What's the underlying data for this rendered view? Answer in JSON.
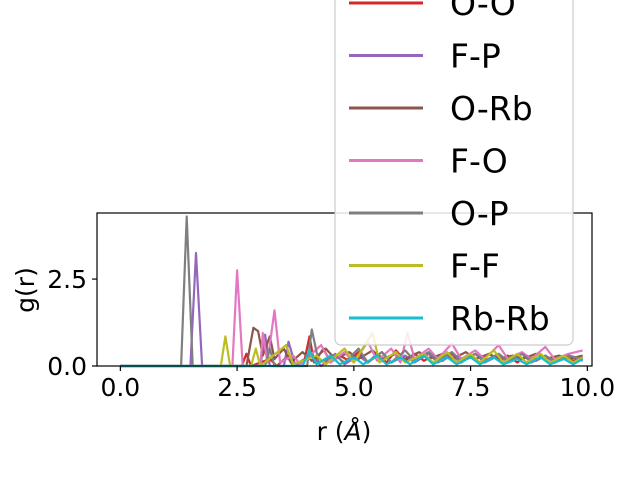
{
  "chart_data": {
    "type": "line",
    "xlabel_prefix": "r (",
    "xlabel_unit": "Å",
    "xlabel_suffix": ")",
    "ylabel": "g(r)",
    "xlim": [
      -0.5,
      10.1
    ],
    "ylim": [
      0,
      4.4
    ],
    "x_ticks": [
      0.0,
      2.5,
      5.0,
      7.5,
      10.0
    ],
    "x_tick_labels": [
      "0.0",
      "2.5",
      "5.0",
      "7.5",
      "10.0"
    ],
    "y_ticks": [
      0.0,
      2.5
    ],
    "y_tick_labels": [
      "0.0",
      "2.5"
    ],
    "grid": false,
    "legend_position": "upper-right (extends above plot)",
    "series": [
      {
        "name": "O-O",
        "color": "#d62728",
        "points": [
          [
            0,
            0
          ],
          [
            2.6,
            0
          ],
          [
            2.7,
            0.35
          ],
          [
            2.8,
            0
          ],
          [
            3.2,
            0.2
          ],
          [
            3.35,
            0
          ],
          [
            3.6,
            0.3
          ],
          [
            3.7,
            0
          ],
          [
            3.95,
            0.2
          ],
          [
            4.05,
            0.85
          ],
          [
            4.15,
            0.1
          ],
          [
            4.35,
            0.5
          ],
          [
            4.5,
            0.1
          ],
          [
            4.7,
            0.3
          ],
          [
            4.9,
            0.15
          ],
          [
            5.1,
            0.4
          ],
          [
            5.3,
            0.1
          ],
          [
            5.5,
            0.35
          ],
          [
            5.7,
            0.1
          ],
          [
            5.9,
            0.45
          ],
          [
            6.1,
            0.15
          ],
          [
            6.3,
            0.35
          ],
          [
            6.5,
            0.15
          ],
          [
            6.7,
            0.3
          ],
          [
            6.9,
            0.15
          ],
          [
            7.1,
            0.35
          ],
          [
            7.3,
            0.1
          ],
          [
            7.5,
            0.3
          ],
          [
            7.7,
            0.1
          ],
          [
            7.9,
            0.35
          ],
          [
            8.1,
            0.15
          ],
          [
            8.3,
            0.3
          ],
          [
            8.5,
            0.1
          ],
          [
            8.7,
            0.3
          ],
          [
            8.9,
            0.15
          ],
          [
            9.1,
            0.3
          ],
          [
            9.3,
            0.1
          ],
          [
            9.5,
            0.3
          ],
          [
            9.7,
            0.15
          ],
          [
            9.9,
            0.25
          ]
        ]
      },
      {
        "name": "F-P",
        "color": "#9467bd",
        "points": [
          [
            0,
            0
          ],
          [
            1.5,
            0
          ],
          [
            1.62,
            3.25
          ],
          [
            1.75,
            0
          ],
          [
            3.0,
            0
          ],
          [
            3.1,
            0.9
          ],
          [
            3.2,
            0
          ],
          [
            3.5,
            0
          ],
          [
            3.6,
            0.7
          ],
          [
            3.75,
            0
          ],
          [
            4.1,
            0.3
          ],
          [
            4.3,
            0
          ],
          [
            4.6,
            0.35
          ],
          [
            4.8,
            0.05
          ],
          [
            5.1,
            0.3
          ],
          [
            5.3,
            0.1
          ],
          [
            5.6,
            0.4
          ],
          [
            5.8,
            0.1
          ],
          [
            6.1,
            0.3
          ],
          [
            6.3,
            0.1
          ],
          [
            6.6,
            0.35
          ],
          [
            6.8,
            0.1
          ],
          [
            7.1,
            0.3
          ],
          [
            7.3,
            0.1
          ],
          [
            7.6,
            0.35
          ],
          [
            7.8,
            0.1
          ],
          [
            8.1,
            0.3
          ],
          [
            8.3,
            0.1
          ],
          [
            8.6,
            0.35
          ],
          [
            8.8,
            0.1
          ],
          [
            9.1,
            0.3
          ],
          [
            9.3,
            0.1
          ],
          [
            9.6,
            0.3
          ],
          [
            9.9,
            0.15
          ]
        ]
      },
      {
        "name": "O-Rb",
        "color": "#8c564b",
        "points": [
          [
            0,
            0
          ],
          [
            2.7,
            0
          ],
          [
            2.85,
            1.1
          ],
          [
            2.95,
            1.0
          ],
          [
            3.05,
            0.3
          ],
          [
            3.2,
            0.85
          ],
          [
            3.3,
            0.2
          ],
          [
            3.5,
            0.5
          ],
          [
            3.65,
            0.1
          ],
          [
            3.9,
            0.4
          ],
          [
            4.1,
            0.15
          ],
          [
            4.4,
            0.5
          ],
          [
            4.6,
            0.2
          ],
          [
            4.9,
            0.4
          ],
          [
            5.1,
            0.2
          ],
          [
            5.4,
            0.45
          ],
          [
            5.6,
            0.2
          ],
          [
            5.9,
            0.35
          ],
          [
            6.1,
            0.2
          ],
          [
            6.4,
            0.4
          ],
          [
            6.6,
            0.2
          ],
          [
            6.9,
            0.35
          ],
          [
            7.1,
            0.2
          ],
          [
            7.4,
            0.4
          ],
          [
            7.6,
            0.2
          ],
          [
            7.9,
            0.35
          ],
          [
            8.1,
            0.2
          ],
          [
            8.4,
            0.3
          ],
          [
            8.6,
            0.2
          ],
          [
            8.9,
            0.35
          ],
          [
            9.1,
            0.2
          ],
          [
            9.4,
            0.3
          ],
          [
            9.6,
            0.2
          ],
          [
            9.9,
            0.3
          ]
        ]
      },
      {
        "name": "F-O",
        "color": "#e377c2",
        "points": [
          [
            0,
            0
          ],
          [
            2.4,
            0
          ],
          [
            2.5,
            2.75
          ],
          [
            2.62,
            0
          ],
          [
            3.0,
            0
          ],
          [
            3.05,
            0.95
          ],
          [
            3.15,
            0.1
          ],
          [
            3.3,
            1.6
          ],
          [
            3.42,
            0.1
          ],
          [
            3.7,
            0.3
          ],
          [
            3.85,
            0.05
          ],
          [
            4.3,
            0.6
          ],
          [
            4.5,
            0.1
          ],
          [
            4.8,
            0.4
          ],
          [
            5.0,
            0.1
          ],
          [
            5.3,
            0.7
          ],
          [
            5.5,
            0.15
          ],
          [
            5.8,
            0.5
          ],
          [
            6.0,
            0.1
          ],
          [
            6.15,
            0.95
          ],
          [
            6.3,
            0.2
          ],
          [
            6.6,
            0.5
          ],
          [
            6.8,
            0.2
          ],
          [
            7.1,
            0.65
          ],
          [
            7.3,
            0.2
          ],
          [
            7.6,
            0.45
          ],
          [
            7.8,
            0.2
          ],
          [
            8.1,
            0.6
          ],
          [
            8.3,
            0.2
          ],
          [
            8.6,
            0.4
          ],
          [
            8.8,
            0.2
          ],
          [
            9.1,
            0.55
          ],
          [
            9.3,
            0.2
          ],
          [
            9.6,
            0.35
          ],
          [
            9.9,
            0.45
          ]
        ]
      },
      {
        "name": "O-P",
        "color": "#7f7f7f",
        "points": [
          [
            0,
            0
          ],
          [
            1.3,
            0
          ],
          [
            1.42,
            4.3
          ],
          [
            1.55,
            0
          ],
          [
            3.1,
            0
          ],
          [
            3.2,
            0.5
          ],
          [
            3.3,
            0
          ],
          [
            4.0,
            0
          ],
          [
            4.1,
            1.05
          ],
          [
            4.25,
            0.1
          ],
          [
            4.6,
            0.3
          ],
          [
            4.8,
            0.1
          ],
          [
            5.1,
            0.5
          ],
          [
            5.3,
            0.1
          ],
          [
            5.6,
            0.4
          ],
          [
            5.8,
            0.1
          ],
          [
            6.1,
            0.45
          ],
          [
            6.3,
            0.15
          ],
          [
            6.6,
            0.4
          ],
          [
            6.8,
            0.15
          ],
          [
            7.1,
            0.4
          ],
          [
            7.3,
            0.15
          ],
          [
            7.6,
            0.35
          ],
          [
            7.8,
            0.15
          ],
          [
            8.1,
            0.35
          ],
          [
            8.3,
            0.15
          ],
          [
            8.6,
            0.35
          ],
          [
            8.8,
            0.15
          ],
          [
            9.1,
            0.3
          ],
          [
            9.3,
            0.15
          ],
          [
            9.6,
            0.3
          ],
          [
            9.9,
            0.2
          ]
        ]
      },
      {
        "name": "F-F",
        "color": "#bcbd22",
        "points": [
          [
            0,
            0
          ],
          [
            2.15,
            0
          ],
          [
            2.25,
            0.85
          ],
          [
            2.35,
            0
          ],
          [
            2.8,
            0
          ],
          [
            2.9,
            0.5
          ],
          [
            3.0,
            0
          ],
          [
            3.55,
            0.6
          ],
          [
            3.7,
            0.05
          ],
          [
            4.2,
            0.3
          ],
          [
            4.4,
            0.05
          ],
          [
            4.8,
            0.5
          ],
          [
            5.0,
            0.1
          ],
          [
            5.4,
            0.95
          ],
          [
            5.55,
            0.1
          ],
          [
            5.9,
            0.4
          ],
          [
            6.1,
            0.1
          ],
          [
            6.5,
            0.35
          ],
          [
            6.7,
            0.1
          ],
          [
            7.0,
            0.4
          ],
          [
            7.2,
            0.1
          ],
          [
            7.5,
            0.35
          ],
          [
            7.7,
            0.1
          ],
          [
            8.0,
            0.45
          ],
          [
            8.2,
            0.1
          ],
          [
            8.5,
            0.35
          ],
          [
            8.7,
            0.1
          ],
          [
            9.0,
            0.35
          ],
          [
            9.2,
            0.1
          ],
          [
            9.5,
            0.3
          ],
          [
            9.7,
            0.1
          ],
          [
            9.9,
            0.25
          ]
        ]
      },
      {
        "name": "Rb-Rb",
        "color": "#17becf",
        "points": [
          [
            0,
            0
          ],
          [
            3.9,
            0
          ],
          [
            4.05,
            0.45
          ],
          [
            4.2,
            0.05
          ],
          [
            4.5,
            0.3
          ],
          [
            4.7,
            0.05
          ],
          [
            5.0,
            0.25
          ],
          [
            5.2,
            0.05
          ],
          [
            5.5,
            0.3
          ],
          [
            5.7,
            0.05
          ],
          [
            6.0,
            0.25
          ],
          [
            6.2,
            0.05
          ],
          [
            6.5,
            0.3
          ],
          [
            6.7,
            0.05
          ],
          [
            7.0,
            0.25
          ],
          [
            7.2,
            0.05
          ],
          [
            7.5,
            0.25
          ],
          [
            7.7,
            0.05
          ],
          [
            8.0,
            0.25
          ],
          [
            8.2,
            0.05
          ],
          [
            8.5,
            0.2
          ],
          [
            8.7,
            0.05
          ],
          [
            9.0,
            0.25
          ],
          [
            9.2,
            0.05
          ],
          [
            9.5,
            0.2
          ],
          [
            9.7,
            0.05
          ],
          [
            9.9,
            0.2
          ]
        ]
      }
    ]
  }
}
